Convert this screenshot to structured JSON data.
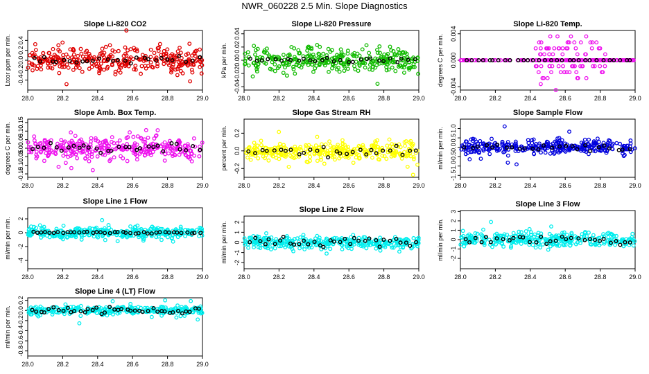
{
  "figure": {
    "title": "NWR_060228  2.5 Min. Slope Diagnostics"
  },
  "colors": {
    "red": "#e00000",
    "green": "#11bb00",
    "magenta": "#ee11ee",
    "yellow": "#ffff00",
    "blue": "#0000dd",
    "cyan": "#00eeee",
    "highlight": "#000000"
  },
  "chart_data": [
    {
      "id": "co2",
      "type": "scatter",
      "title": "Slope Li-820 CO2",
      "ylabel": "Ltcor ppm per min.",
      "xlabel": "",
      "xlim": [
        28.0,
        29.0
      ],
      "xticks": [
        "28.0",
        "28.2",
        "28.4",
        "28.6",
        "28.8",
        "29.0"
      ],
      "ylim": [
        -0.6,
        0.6
      ],
      "yticks": [
        {
          "v": -0.4,
          "label": "-0.4"
        },
        {
          "v": -0.2,
          "label": "-0.2"
        },
        {
          "v": 0.0,
          "label": "0.0"
        },
        {
          "v": 0.2,
          "label": "0.2"
        },
        {
          "v": 0.4,
          "label": "0.4"
        }
      ],
      "color": "red",
      "series": [
        {
          "name": "all",
          "spread": 0.24,
          "n": 330
        },
        {
          "name": "highlighted",
          "spread": 0.08,
          "n": 28
        }
      ]
    },
    {
      "id": "pressure",
      "type": "scatter",
      "title": "Slope Li-820 Pressure",
      "ylabel": "kPa per min.",
      "xlabel": "",
      "xlim": [
        28.0,
        29.0
      ],
      "xticks": [
        "28.0",
        "28.2",
        "28.4",
        "28.6",
        "28.8",
        "29.0"
      ],
      "ylim": [
        -0.045,
        0.045
      ],
      "yticks": [
        {
          "v": -0.04,
          "label": "-0.04"
        },
        {
          "v": -0.02,
          "label": "-0.02"
        },
        {
          "v": 0.0,
          "label": "0.00"
        },
        {
          "v": 0.02,
          "label": "0.02"
        },
        {
          "v": 0.04,
          "label": "0.04"
        }
      ],
      "color": "green",
      "series": [
        {
          "name": "all",
          "spread": 0.016,
          "n": 330
        },
        {
          "name": "highlighted",
          "spread": 0.004,
          "n": 28
        }
      ]
    },
    {
      "id": "temp",
      "type": "scatter",
      "title": "Slope Li-820 Temp.",
      "ylabel": "degrees C per min.",
      "xlabel": "",
      "xlim": [
        28.0,
        29.0
      ],
      "xticks": [
        "28.0",
        "28.2",
        "28.4",
        "28.6",
        "28.8",
        "29.0"
      ],
      "ylim": [
        -0.0045,
        0.0045
      ],
      "yticks": [
        {
          "v": -0.004,
          "label": "-0.004"
        },
        {
          "v": 0.0,
          "label": "0.000"
        },
        {
          "v": 0.004,
          "label": "0.004"
        }
      ],
      "color": "magenta",
      "series": [
        {
          "name": "all",
          "spread": 0.0,
          "n": 120,
          "burst": {
            "from": 28.43,
            "to": 28.83,
            "spread": 0.0018,
            "n": 110
          }
        },
        {
          "name": "highlighted",
          "spread": 0.0,
          "n": 30
        }
      ]
    },
    {
      "id": "boxtemp",
      "type": "scatter",
      "title": "Slope Amb. Box Temp.",
      "ylabel": "degrees C per min.",
      "xlabel": "",
      "xlim": [
        28.0,
        29.0
      ],
      "xticks": [
        "28.0",
        "28.2",
        "28.4",
        "28.6",
        "28.8",
        "29.0"
      ],
      "ylim": [
        -0.17,
        0.17
      ],
      "yticks": [
        {
          "v": -0.15,
          "label": "-0.15"
        },
        {
          "v": -0.1,
          "label": "-0.10"
        },
        {
          "v": -0.05,
          "label": "-0.05"
        },
        {
          "v": 0.0,
          "label": "0.00"
        },
        {
          "v": 0.05,
          "label": "0.05"
        },
        {
          "v": 0.1,
          "label": "0.10"
        },
        {
          "v": 0.15,
          "label": "0.15"
        }
      ],
      "color": "magenta",
      "series": [
        {
          "name": "all",
          "spread": 0.06,
          "n": 330
        },
        {
          "name": "highlighted",
          "spread": 0.03,
          "n": 30
        }
      ]
    },
    {
      "id": "rh",
      "type": "scatter",
      "title": "Slope Gas Stream RH",
      "ylabel": "percent per min.",
      "xlabel": "",
      "xlim": [
        28.0,
        29.0
      ],
      "xticks": [
        "28.0",
        "28.2",
        "28.4",
        "28.6",
        "28.8",
        "29.0"
      ],
      "ylim": [
        -0.3,
        0.36
      ],
      "yticks": [
        {
          "v": -0.2,
          "label": "-0.2"
        },
        {
          "v": 0.0,
          "label": "0.0"
        },
        {
          "v": 0.2,
          "label": "0.2"
        }
      ],
      "color": "yellow",
      "series": [
        {
          "name": "all",
          "spread": 0.1,
          "n": 330
        },
        {
          "name": "highlighted",
          "spread": 0.06,
          "n": 28
        }
      ]
    },
    {
      "id": "sampleflow",
      "type": "scatter",
      "title": "Slope Sample Flow",
      "ylabel": "ml/min per min.",
      "xlabel": "",
      "xlim": [
        28.0,
        29.0
      ],
      "xticks": [
        "28.0",
        "28.2",
        "28.4",
        "28.6",
        "28.8",
        "29.0"
      ],
      "ylim": [
        -1.6,
        1.5
      ],
      "yticks": [
        {
          "v": -1.5,
          "label": "-1.5"
        },
        {
          "v": -1.0,
          "label": "-1.0"
        },
        {
          "v": -0.5,
          "label": "-0.5"
        },
        {
          "v": 0.0,
          "label": "0.0"
        },
        {
          "v": 0.5,
          "label": "0.5"
        },
        {
          "v": 1.0,
          "label": "1.0"
        }
      ],
      "color": "blue",
      "series": [
        {
          "name": "all",
          "spread": 0.35,
          "n": 330
        },
        {
          "name": "highlighted",
          "spread": 0.15,
          "n": 26
        }
      ]
    },
    {
      "id": "line1",
      "type": "scatter",
      "title": "Slope Line 1 Flow",
      "ylabel": "ml/min per min.",
      "xlabel": "",
      "xlim": [
        28.0,
        29.0
      ],
      "xticks": [
        "28.0",
        "28.2",
        "28.4",
        "28.6",
        "28.8",
        "29.0"
      ],
      "ylim": [
        -5.2,
        3.6
      ],
      "yticks": [
        {
          "v": -4,
          "label": "-4"
        },
        {
          "v": -2,
          "label": "-2"
        },
        {
          "v": 0,
          "label": "0"
        },
        {
          "v": 2,
          "label": "2"
        }
      ],
      "color": "cyan",
      "series": [
        {
          "name": "all",
          "spread": 0.8,
          "n": 330
        },
        {
          "name": "highlighted",
          "spread": 0.15,
          "n": 40
        }
      ]
    },
    {
      "id": "line2",
      "type": "scatter",
      "title": "Slope Line 2 Flow",
      "ylabel": "ml/min per min.",
      "xlabel": "",
      "xlim": [
        28.0,
        29.0
      ],
      "xticks": [
        "28.0",
        "28.2",
        "28.4",
        "28.6",
        "28.8",
        "29.0"
      ],
      "ylim": [
        -2.6,
        2.6
      ],
      "yticks": [
        {
          "v": -2,
          "label": "-2"
        },
        {
          "v": -1,
          "label": "-1"
        },
        {
          "v": 0,
          "label": "0"
        },
        {
          "v": 1,
          "label": "1"
        },
        {
          "v": 2,
          "label": "2"
        }
      ],
      "color": "cyan",
      "series": [
        {
          "name": "all",
          "spread": 0.6,
          "n": 330
        },
        {
          "name": "highlighted",
          "spread": 0.45,
          "n": 34
        }
      ]
    },
    {
      "id": "line3",
      "type": "scatter",
      "title": "Slope Line 3 Flow",
      "ylabel": "ml/min per min.",
      "xlabel": "",
      "xlim": [
        28.0,
        29.0
      ],
      "xticks": [
        "28.0",
        "28.2",
        "28.4",
        "28.6",
        "28.8",
        "29.0"
      ],
      "ylim": [
        -3.1,
        3.1
      ],
      "yticks": [
        {
          "v": -2,
          "label": "-2"
        },
        {
          "v": -1,
          "label": "-1"
        },
        {
          "v": 0,
          "label": "0"
        },
        {
          "v": 1,
          "label": "1"
        },
        {
          "v": 2,
          "label": "2"
        },
        {
          "v": 3,
          "label": "3"
        }
      ],
      "color": "cyan",
      "series": [
        {
          "name": "all",
          "spread": 0.7,
          "n": 330
        },
        {
          "name": "highlighted",
          "spread": 0.5,
          "n": 32
        }
      ]
    },
    {
      "id": "line4",
      "type": "scatter",
      "title": "Slope Line 4 (LT) Flow",
      "ylabel": "ml/min per min.",
      "xlabel": "",
      "xlim": [
        28.0,
        29.0
      ],
      "xticks": [
        "28.0",
        "28.2",
        "28.4",
        "28.6",
        "28.8",
        "29.0"
      ],
      "ylim": [
        -0.9,
        0.25
      ],
      "yticks": [
        {
          "v": -0.8,
          "label": "-0.8"
        },
        {
          "v": -0.6,
          "label": "-0.6"
        },
        {
          "v": -0.4,
          "label": "-0.4"
        },
        {
          "v": -0.2,
          "label": "-0.2"
        },
        {
          "v": 0.0,
          "label": "0.0"
        },
        {
          "v": 0.2,
          "label": "0.2"
        }
      ],
      "color": "cyan",
      "series": [
        {
          "name": "all",
          "spread": 0.08,
          "n": 330
        },
        {
          "name": "highlighted",
          "spread": 0.06,
          "n": 40
        }
      ]
    }
  ]
}
